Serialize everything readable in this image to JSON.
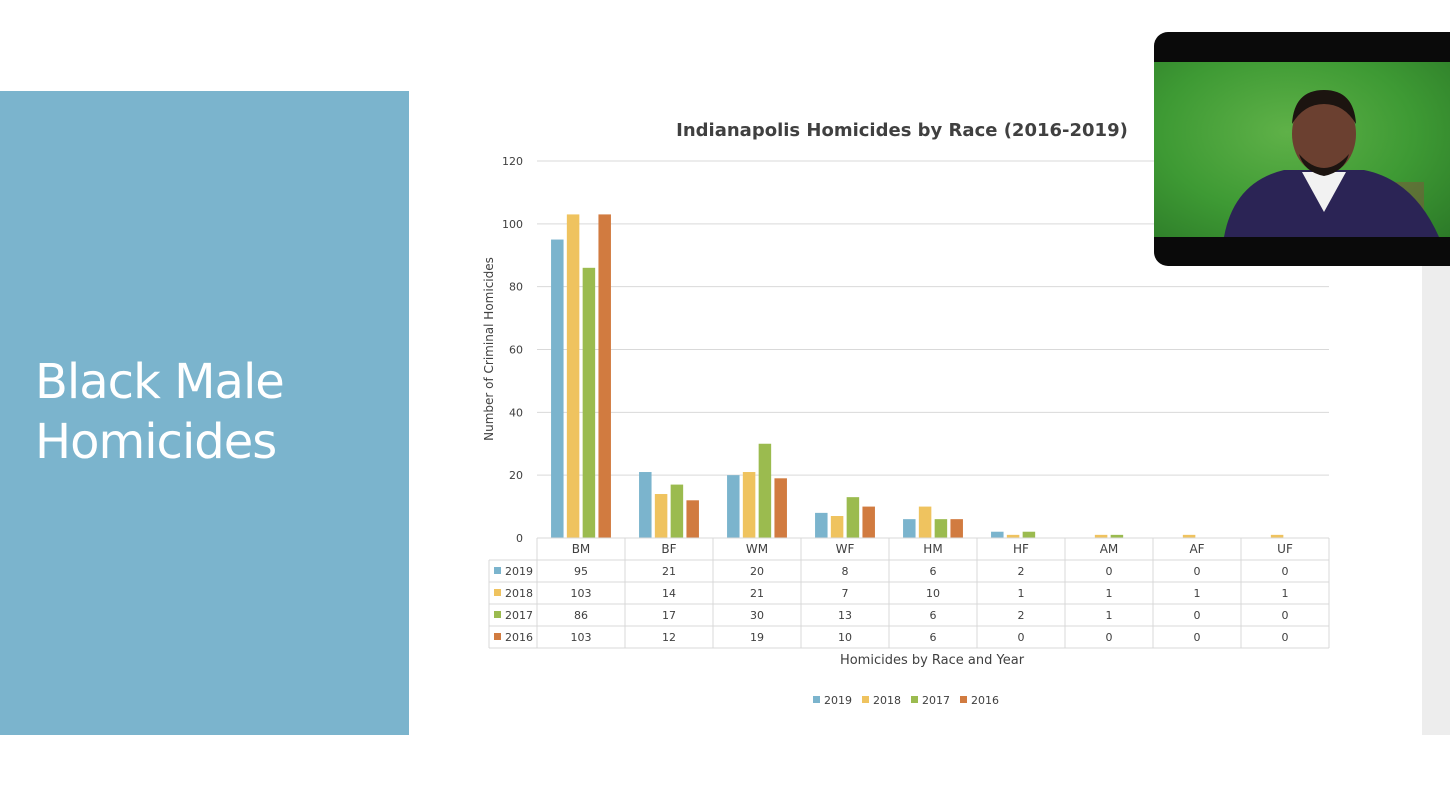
{
  "slide": {
    "title_line1": "Black Male",
    "title_line2": "Homicides"
  },
  "colors": {
    "panel": "#7bb4cd",
    "2019": "#7bb4cd",
    "2018": "#efc35f",
    "2017": "#9bbb4f",
    "2016": "#d17b40"
  },
  "video": {
    "icon": "presenter-video-icon"
  },
  "chart_data": {
    "type": "bar",
    "title": "Indianapolis Homicides by Race (2016-2019)",
    "xlabel": "Homicides by Race and Year",
    "ylabel": "Number of Criminal  Homicides",
    "ylim": [
      0,
      120
    ],
    "yticks": [
      0,
      20,
      40,
      60,
      80,
      100,
      120
    ],
    "grid": true,
    "legend": "bottom",
    "data_table": true,
    "categories": [
      "BM",
      "BF",
      "WM",
      "WF",
      "HM",
      "HF",
      "AM",
      "AF",
      "UF"
    ],
    "series": [
      {
        "name": "2019",
        "color": "#7bb4cd",
        "values": [
          95,
          21,
          20,
          8,
          6,
          2,
          0,
          0,
          0
        ]
      },
      {
        "name": "2018",
        "color": "#efc35f",
        "values": [
          103,
          14,
          21,
          7,
          10,
          1,
          1,
          1,
          1
        ]
      },
      {
        "name": "2017",
        "color": "#9bbb4f",
        "values": [
          86,
          17,
          30,
          13,
          6,
          2,
          1,
          0,
          0
        ]
      },
      {
        "name": "2016",
        "color": "#d17b40",
        "values": [
          103,
          12,
          19,
          10,
          6,
          0,
          0,
          0,
          0
        ]
      }
    ]
  }
}
